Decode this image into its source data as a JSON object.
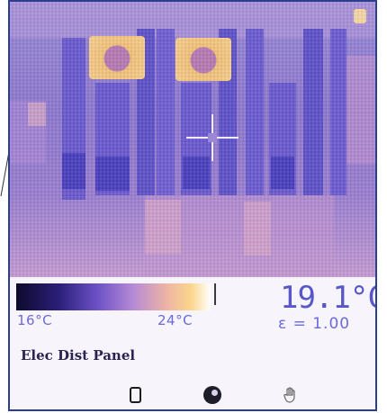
{
  "scale": {
    "min_label": "16°C",
    "max_label": "24°C"
  },
  "reading": {
    "temperature": "19.1°C",
    "emissivity": "ε = 1.00"
  },
  "image_label": "Elec Dist Panel",
  "icons": [
    "battery-icon",
    "disc-icon",
    "hand-icon"
  ]
}
